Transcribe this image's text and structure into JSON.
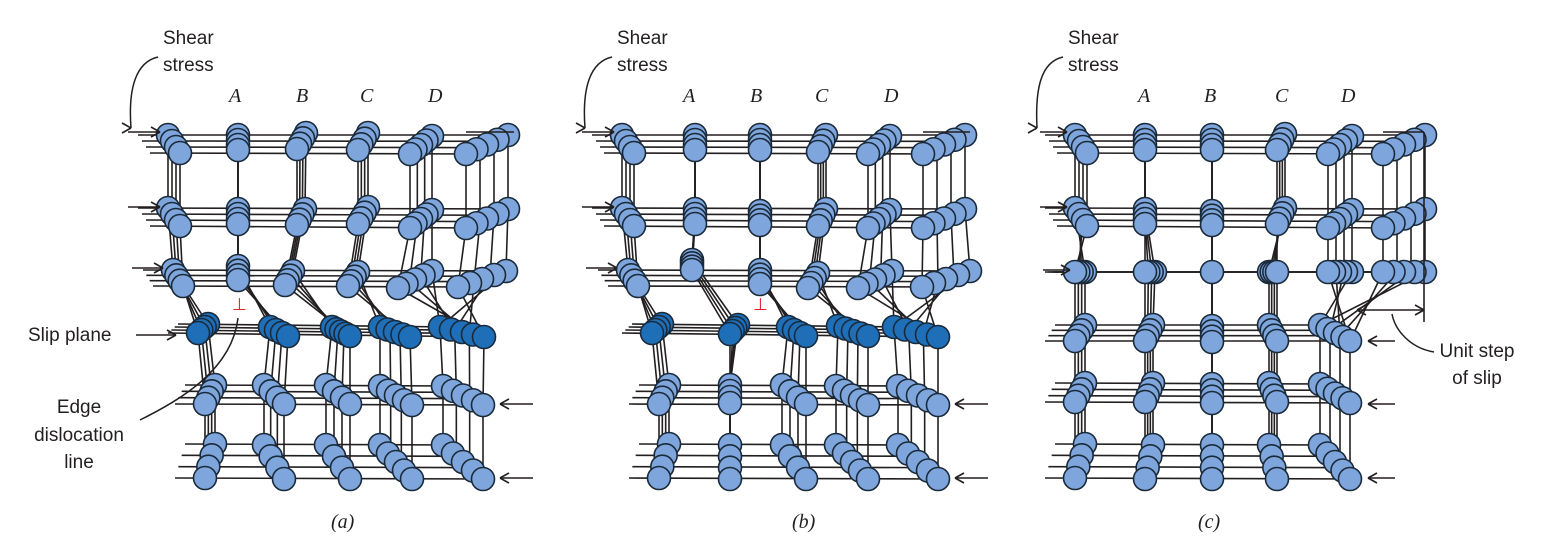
{
  "panels": [
    {
      "caption": "(a)",
      "shear_label": [
        "Shear",
        "stress"
      ],
      "columns": [
        "A",
        "B",
        "C",
        "D"
      ],
      "dislocation_symbol": "⊥"
    },
    {
      "caption": "(b)",
      "shear_label": [
        "Shear",
        "stress"
      ],
      "columns": [
        "A",
        "B",
        "C",
        "D"
      ],
      "dislocation_symbol": "⊥"
    },
    {
      "caption": "(c)",
      "shear_label": [
        "Shear",
        "stress"
      ],
      "columns": [
        "A",
        "B",
        "C",
        "D"
      ]
    }
  ],
  "annotations": {
    "slip_plane": "Slip plane",
    "edge_dislocation": [
      "Edge",
      "dislocation",
      "line"
    ],
    "unit_step": [
      "Unit step",
      "of slip"
    ]
  },
  "colors": {
    "atom": "#7fa6dc",
    "atom_slip_plane": "#1f6fb8",
    "atom_outline": "#1a2a3a",
    "bond": "#231f20",
    "dislocation_symbol": "#e0202a"
  }
}
